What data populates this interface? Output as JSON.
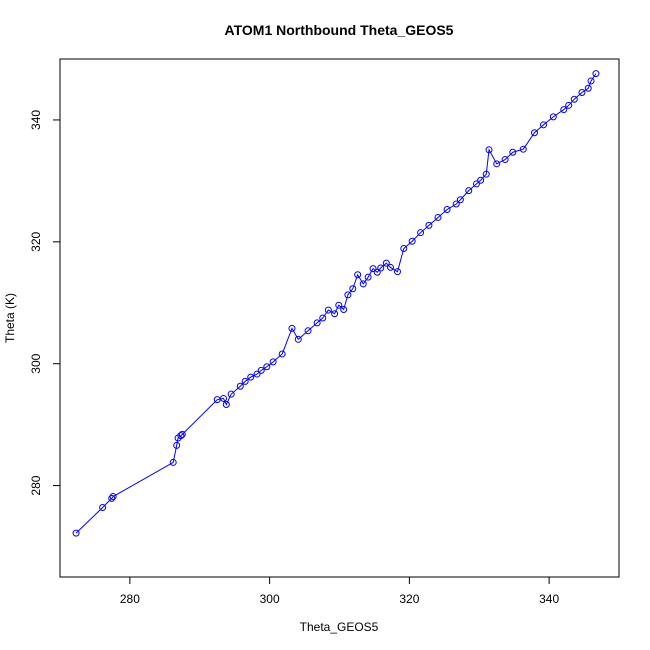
{
  "chart_data": {
    "type": "scatter",
    "title": "ATOM1 Northbound Theta_GEOS5",
    "xlabel": "Theta_GEOS5",
    "ylabel": "Theta (K)",
    "xlim": [
      270,
      350
    ],
    "ylim": [
      265,
      350
    ],
    "xticks": [
      280,
      300,
      320,
      340
    ],
    "yticks": [
      280,
      300,
      320,
      340
    ],
    "grid": false,
    "colors": {
      "series": "#0000ff",
      "axis": "#000000"
    },
    "series": [
      {
        "style": "points-and-lines",
        "x": [
          272.3,
          276.1,
          277.4,
          277.6,
          286.2,
          286.7,
          286.9,
          287.3,
          287.5,
          292.5,
          293.4,
          293.8,
          294.5,
          295.8,
          296.5,
          297.3,
          298.2,
          298.8,
          299.6,
          300.5,
          301.8,
          303.2,
          304.1,
          305.5,
          306.8,
          307.6,
          308.4,
          309.3,
          309.9,
          310.6,
          311.2,
          311.9,
          312.6,
          313.4,
          314.1,
          314.8,
          315.4,
          315.9,
          316.7,
          317.3,
          318.3,
          319.2,
          320.4,
          321.6,
          322.8,
          324.1,
          325.4,
          326.7,
          327.3,
          328.5,
          329.6,
          330.2,
          331.0,
          331.4,
          332.5,
          333.7,
          334.8,
          336.3,
          337.9,
          339.2,
          340.6,
          342.1,
          342.8,
          343.6,
          344.7,
          345.6,
          346.0,
          346.7
        ],
        "y": [
          272.2,
          276.4,
          277.9,
          278.2,
          283.8,
          286.6,
          287.8,
          288.2,
          288.4,
          294.1,
          294.3,
          293.3,
          295.0,
          296.3,
          297.1,
          297.8,
          298.3,
          298.9,
          299.5,
          300.3,
          301.6,
          305.8,
          304.0,
          305.4,
          306.7,
          307.5,
          308.8,
          308.2,
          309.6,
          308.9,
          311.3,
          312.3,
          314.6,
          313.1,
          314.2,
          315.6,
          315.0,
          315.7,
          316.5,
          315.8,
          315.1,
          318.9,
          320.1,
          321.5,
          322.7,
          324.0,
          325.3,
          326.2,
          326.9,
          328.4,
          329.5,
          330.1,
          331.1,
          335.1,
          332.8,
          333.5,
          334.7,
          335.2,
          337.9,
          339.2,
          340.5,
          341.7,
          342.4,
          343.4,
          344.5,
          345.2,
          346.4,
          347.6
        ]
      }
    ]
  }
}
